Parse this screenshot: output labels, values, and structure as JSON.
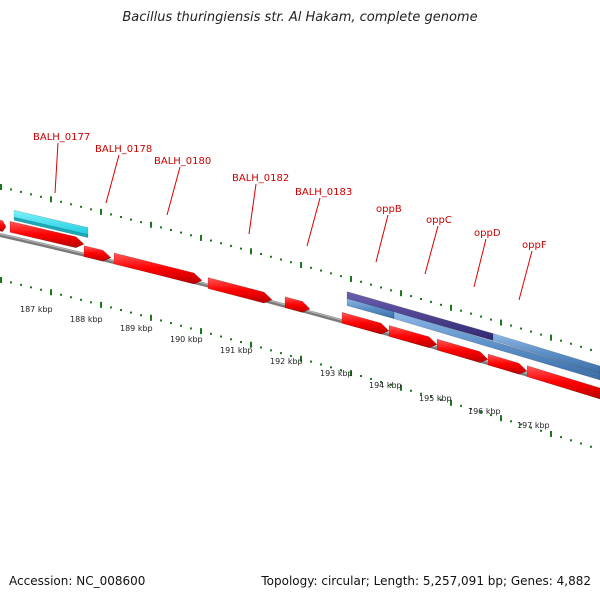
{
  "title": "Bacillus thuringiensis str. Al Hakam, complete genome",
  "accession": "Accession: NC_008600",
  "stats": "Topology: circular; Length: 5,257,091 bp; Genes: 4,882",
  "gene_labels": [
    "BALH_0177",
    "BALH_0178",
    "BALH_0180",
    "BALH_0182",
    "BALH_0183",
    "oppB",
    "oppC",
    "oppD",
    "oppF"
  ],
  "kbp_labels": [
    "187 kbp",
    "188 kbp",
    "189 kbp",
    "190 kbp",
    "191 kbp",
    "192 kbp",
    "193 kbp",
    "194 kbp",
    "195 kbp",
    "196 kbp",
    "197 kbp"
  ],
  "colors": {
    "gene": "#ff0000",
    "label": "#cc0000",
    "cyan_feature": "#33e5f5",
    "purple_feature": "#4a3f8c",
    "blue_feature": "#5b8fc7",
    "backbone": "#8a8a8a",
    "tick": "#1a7a1a"
  }
}
